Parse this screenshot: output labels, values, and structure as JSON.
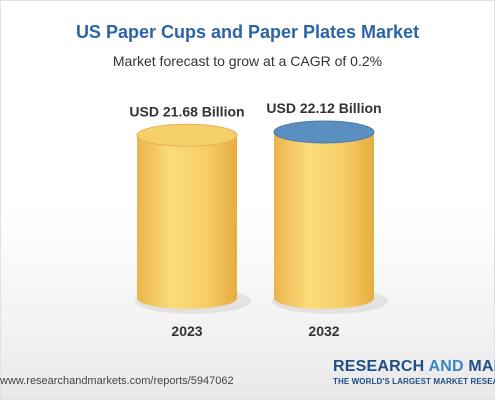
{
  "title": "US Paper Cups and Paper Plates Market",
  "subtitle": "Market forecast to grow at a CAGR of 0.2%",
  "chart_data": {
    "type": "bar",
    "style": "3d-cylinder",
    "categories": [
      "2023",
      "2032"
    ],
    "values": [
      21.68,
      22.12
    ],
    "value_labels": [
      "USD 21.68 Billion",
      "USD 22.12 Billion"
    ],
    "unit": "USD Billion",
    "title": "US Paper Cups and Paper Plates Market",
    "subtitle": "Market forecast to grow at a CAGR of 0.2%",
    "grid": false,
    "colors": {
      "cylinder_body": "#f5cf6a",
      "cylinder_top_2023": "#f5cf6a",
      "cylinder_top_2032": "#5b8fbf"
    }
  },
  "footer": {
    "url": "www.researchandmarkets.com/reports/5947062"
  },
  "brand": {
    "name_part1": "RESEARCH ",
    "name_part2": "AND",
    "name_part3": " MARKETS",
    "tagline": "THE WORLD'S LARGEST MARKET RESEARCH STORE"
  }
}
